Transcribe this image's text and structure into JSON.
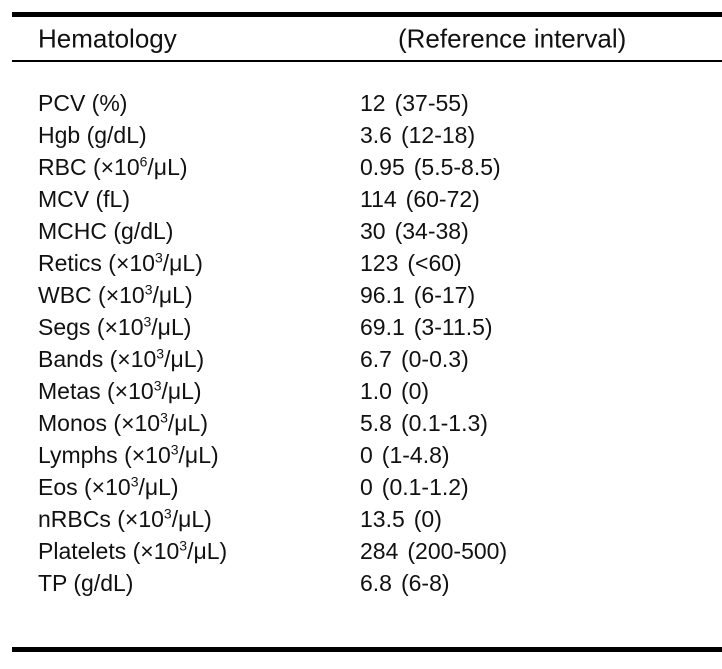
{
  "table": {
    "header": {
      "parameter": "Hematology",
      "reference": "(Reference interval)"
    },
    "rows": [
      {
        "label_pre": "PCV (%)",
        "sup": "",
        "label_post": "",
        "result": "12",
        "reference": "(37-55)"
      },
      {
        "label_pre": "Hgb (g/dL)",
        "sup": "",
        "label_post": "",
        "result": "3.6",
        "reference": "(12-18)"
      },
      {
        "label_pre": "RBC (×10",
        "sup": "6",
        "label_post": "/μL)",
        "result": "0.95",
        "reference": "(5.5-8.5)"
      },
      {
        "label_pre": "MCV (fL)",
        "sup": "",
        "label_post": "",
        "result": "114",
        "reference": "(60-72)"
      },
      {
        "label_pre": "MCHC (g/dL)",
        "sup": "",
        "label_post": "",
        "result": "30",
        "reference": "(34-38)"
      },
      {
        "label_pre": "Retics (×10",
        "sup": "3",
        "label_post": "/μL)",
        "result": "123",
        "reference": "(<60)"
      },
      {
        "label_pre": "WBC (×10",
        "sup": "3",
        "label_post": "/μL)",
        "result": "96.1",
        "reference": "(6-17)"
      },
      {
        "label_pre": "Segs (×10",
        "sup": "3",
        "label_post": "/μL)",
        "result": "69.1",
        "reference": "(3-11.5)"
      },
      {
        "label_pre": "Bands (×10",
        "sup": "3",
        "label_post": "/μL)",
        "result": "6.7",
        "reference": "(0-0.3)"
      },
      {
        "label_pre": "Metas (×10",
        "sup": "3",
        "label_post": "/μL)",
        "result": "1.0",
        "reference": "(0)"
      },
      {
        "label_pre": "Monos (×10",
        "sup": "3",
        "label_post": "/μL)",
        "result": "5.8",
        "reference": "(0.1-1.3)"
      },
      {
        "label_pre": "Lymphs (×10",
        "sup": "3",
        "label_post": "/μL)",
        "result": "0",
        "reference": "(1-4.8)"
      },
      {
        "label_pre": "Eos (×10",
        "sup": "3",
        "label_post": "/μL)",
        "result": "0",
        "reference": "(0.1-1.2)"
      },
      {
        "label_pre": "nRBCs (×10",
        "sup": "3",
        "label_post": "/μL)",
        "result": "13.5",
        "reference": "(0)"
      },
      {
        "label_pre": "Platelets (×10",
        "sup": "3",
        "label_post": "/μL)",
        "result": "284",
        "reference": "(200-500)"
      },
      {
        "label_pre": "TP (g/dL)",
        "sup": "",
        "label_post": "",
        "result": "6.8",
        "reference": "(6-8)"
      }
    ]
  },
  "colors": {
    "background": "#ffffff",
    "text": "#111111",
    "rule": "#000000"
  }
}
